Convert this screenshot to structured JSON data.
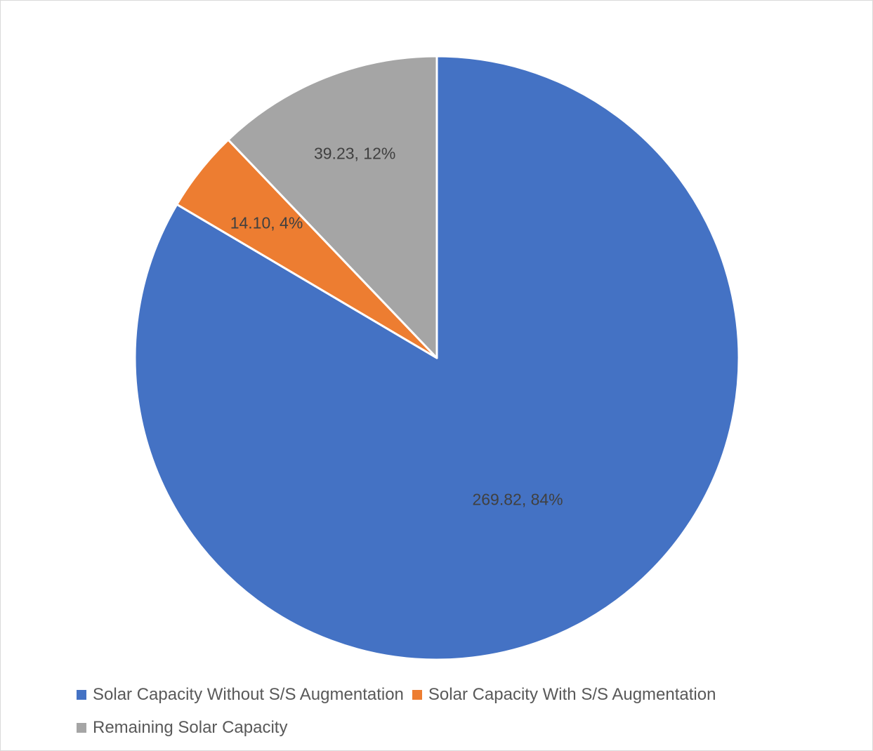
{
  "chart_data": {
    "type": "pie",
    "title": "",
    "start_angle_deg": 0,
    "direction": "clockwise",
    "legend_position": "bottom",
    "slices": [
      {
        "name": "Solar Capacity Without S/S Augmentation",
        "value": 269.82,
        "percent_label": "84%",
        "label": "269.82, 84%",
        "color": "#4472C4"
      },
      {
        "name": "Solar Capacity With S/S Augmentation",
        "value": 14.1,
        "percent_label": "4%",
        "label": "14.10, 4%",
        "color": "#ED7D31"
      },
      {
        "name": "Remaining Solar Capacity",
        "value": 39.23,
        "percent_label": "12%",
        "label": "39.23, 12%",
        "color": "#A5A5A5"
      }
    ]
  }
}
